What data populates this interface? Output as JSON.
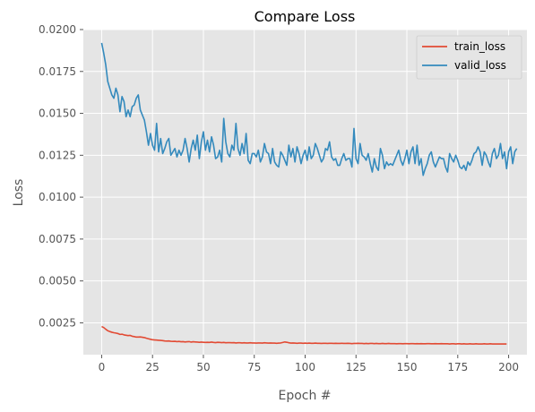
{
  "chart_data": {
    "type": "line",
    "title": "Compare Loss",
    "xlabel": "Epoch #",
    "ylabel": "Loss",
    "xlim": [
      -9,
      209
    ],
    "ylim": [
      0.0006,
      0.02
    ],
    "x_ticks": [
      0,
      25,
      50,
      75,
      100,
      125,
      150,
      175,
      200
    ],
    "y_ticks": [
      0.0025,
      0.005,
      0.0075,
      0.01,
      0.0125,
      0.015,
      0.0175,
      0.02
    ],
    "y_tick_labels": [
      "0.0025",
      "0.0050",
      "0.0075",
      "0.0100",
      "0.0125",
      "0.0150",
      "0.0175",
      "0.0200"
    ],
    "grid": true,
    "legend_position": "top-right",
    "series": [
      {
        "name": "train_loss",
        "color": "#E24A33",
        "x_start": 0,
        "x_step": 1,
        "values": [
          0.00228,
          0.00222,
          0.00212,
          0.00203,
          0.00198,
          0.00194,
          0.00191,
          0.00189,
          0.00186,
          0.00181,
          0.00182,
          0.00178,
          0.00176,
          0.00174,
          0.00175,
          0.0017,
          0.00168,
          0.00165,
          0.00165,
          0.00166,
          0.00164,
          0.00162,
          0.00158,
          0.00155,
          0.00152,
          0.00149,
          0.00148,
          0.00147,
          0.00146,
          0.00145,
          0.00144,
          0.00142,
          0.00141,
          0.00142,
          0.0014,
          0.00139,
          0.0014,
          0.00138,
          0.00139,
          0.00137,
          0.00138,
          0.00136,
          0.00137,
          0.00138,
          0.00135,
          0.00137,
          0.00136,
          0.00135,
          0.00134,
          0.00135,
          0.00134,
          0.00133,
          0.00134,
          0.00133,
          0.00135,
          0.00133,
          0.00132,
          0.00134,
          0.00133,
          0.00132,
          0.00133,
          0.00131,
          0.00132,
          0.00132,
          0.00131,
          0.00132,
          0.0013,
          0.00131,
          0.00131,
          0.0013,
          0.00131,
          0.0013,
          0.0013,
          0.00131,
          0.0013,
          0.0013,
          0.00129,
          0.0013,
          0.0013,
          0.00129,
          0.00131,
          0.0013,
          0.00129,
          0.0013,
          0.00129,
          0.00129,
          0.00128,
          0.00129,
          0.0013,
          0.00133,
          0.00136,
          0.00134,
          0.00131,
          0.00129,
          0.0013,
          0.00129,
          0.00128,
          0.00129,
          0.00129,
          0.00128,
          0.00129,
          0.00128,
          0.00129,
          0.00128,
          0.00128,
          0.00129,
          0.00128,
          0.00128,
          0.00127,
          0.00128,
          0.00128,
          0.00127,
          0.00128,
          0.00128,
          0.00127,
          0.00128,
          0.00127,
          0.00127,
          0.00128,
          0.00127,
          0.00127,
          0.00128,
          0.00127,
          0.00126,
          0.00127,
          0.00127,
          0.00128,
          0.00127,
          0.00127,
          0.00126,
          0.00127,
          0.00126,
          0.00127,
          0.00127,
          0.00126,
          0.00127,
          0.00126,
          0.00126,
          0.00127,
          0.00126,
          0.00126,
          0.00127,
          0.00126,
          0.00126,
          0.00126,
          0.00125,
          0.00126,
          0.00126,
          0.00125,
          0.00126,
          0.00126,
          0.00125,
          0.00126,
          0.00126,
          0.00125,
          0.00126,
          0.00125,
          0.00126,
          0.00125,
          0.00125,
          0.00126,
          0.00126,
          0.00125,
          0.00125,
          0.00126,
          0.00125,
          0.00125,
          0.00126,
          0.00125,
          0.00125,
          0.00125,
          0.00124,
          0.00125,
          0.00125,
          0.00124,
          0.00125,
          0.00125,
          0.00124,
          0.00125,
          0.00124,
          0.00124,
          0.00125,
          0.00124,
          0.00124,
          0.00125,
          0.00124,
          0.00124,
          0.00124,
          0.00125,
          0.00124,
          0.00124,
          0.00125,
          0.00124,
          0.00124,
          0.00124,
          0.00124,
          0.00124,
          0.00124,
          0.00124,
          0.00124
        ]
      },
      {
        "name": "valid_loss",
        "color": "#348ABD",
        "x_start": 0,
        "x_step": 1,
        "values": [
          0.0192,
          0.0186,
          0.0179,
          0.0169,
          0.0165,
          0.0161,
          0.0159,
          0.0165,
          0.0161,
          0.0151,
          0.016,
          0.0157,
          0.0148,
          0.0152,
          0.0148,
          0.0154,
          0.0155,
          0.0159,
          0.0161,
          0.0152,
          0.0149,
          0.0146,
          0.0139,
          0.0131,
          0.0138,
          0.0131,
          0.0128,
          0.0144,
          0.0127,
          0.0135,
          0.0126,
          0.0129,
          0.0133,
          0.0135,
          0.0125,
          0.0127,
          0.0129,
          0.0124,
          0.0128,
          0.0125,
          0.0128,
          0.0135,
          0.0129,
          0.0121,
          0.0129,
          0.0134,
          0.0128,
          0.0137,
          0.0123,
          0.0133,
          0.0139,
          0.0128,
          0.0134,
          0.0127,
          0.0136,
          0.0131,
          0.0123,
          0.0124,
          0.0128,
          0.0121,
          0.0147,
          0.0133,
          0.0126,
          0.0124,
          0.0131,
          0.0128,
          0.0144,
          0.0129,
          0.0125,
          0.0132,
          0.0126,
          0.0138,
          0.0122,
          0.012,
          0.0126,
          0.0126,
          0.0124,
          0.0128,
          0.0121,
          0.0124,
          0.0132,
          0.0127,
          0.0126,
          0.012,
          0.0129,
          0.0121,
          0.0119,
          0.0118,
          0.0127,
          0.0125,
          0.0122,
          0.0119,
          0.0131,
          0.0124,
          0.0129,
          0.0121,
          0.013,
          0.0126,
          0.012,
          0.0125,
          0.0128,
          0.0122,
          0.013,
          0.0123,
          0.0125,
          0.0132,
          0.0129,
          0.0125,
          0.0121,
          0.0123,
          0.0129,
          0.0128,
          0.0133,
          0.0124,
          0.0122,
          0.0123,
          0.0119,
          0.0119,
          0.0123,
          0.0126,
          0.0122,
          0.0123,
          0.0123,
          0.0118,
          0.0141,
          0.0123,
          0.012,
          0.0132,
          0.0125,
          0.0124,
          0.0122,
          0.0126,
          0.012,
          0.0115,
          0.0123,
          0.0118,
          0.0116,
          0.0129,
          0.0125,
          0.0117,
          0.0121,
          0.0119,
          0.012,
          0.0119,
          0.0122,
          0.0125,
          0.0128,
          0.0122,
          0.0119,
          0.0123,
          0.0128,
          0.012,
          0.0127,
          0.013,
          0.012,
          0.0131,
          0.0119,
          0.0123,
          0.0113,
          0.0117,
          0.012,
          0.0125,
          0.0127,
          0.0121,
          0.0118,
          0.0121,
          0.0124,
          0.0123,
          0.0123,
          0.0118,
          0.0115,
          0.0126,
          0.0123,
          0.0121,
          0.0125,
          0.0122,
          0.0118,
          0.0117,
          0.0119,
          0.0116,
          0.0121,
          0.0119,
          0.0122,
          0.0126,
          0.0127,
          0.013,
          0.0127,
          0.0119,
          0.0127,
          0.0125,
          0.0121,
          0.0118,
          0.0126,
          0.0129,
          0.0123,
          0.0125,
          0.0132,
          0.0123,
          0.0127,
          0.0117,
          0.0127,
          0.013,
          0.012,
          0.0127,
          0.0129
        ]
      }
    ]
  }
}
